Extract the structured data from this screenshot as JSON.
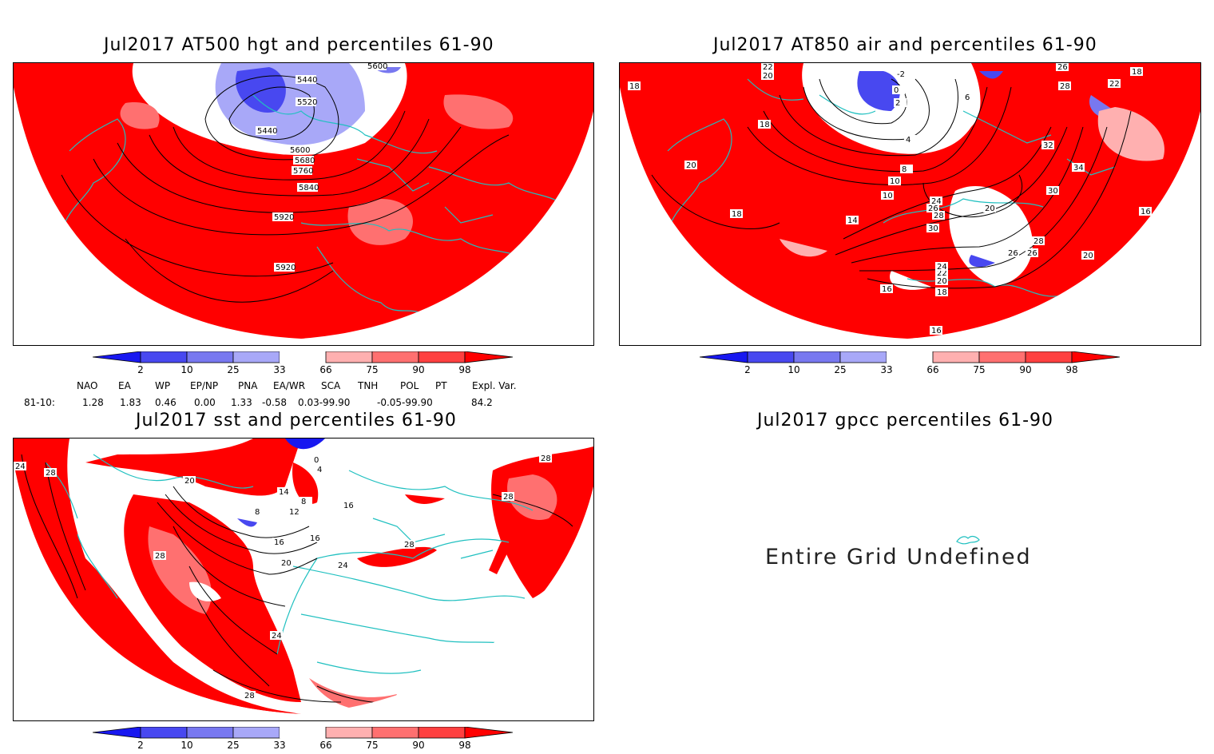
{
  "panels": [
    {
      "title": "Jul2017 AT500 hgt and percentiles 61-90",
      "contour_labels": [
        "5440",
        "5440",
        "5520",
        "5600",
        "5600",
        "5680",
        "5760",
        "5840",
        "5920",
        "5920"
      ]
    },
    {
      "title": "Jul2017 AT850 air and percentiles 61-90",
      "contour_labels": [
        "22",
        "20",
        "18",
        "18",
        "20",
        "18",
        "-2",
        "0",
        "2",
        "4",
        "6",
        "8",
        "10",
        "10",
        "12",
        "14",
        "16",
        "18",
        "20",
        "22",
        "24",
        "26",
        "28",
        "30",
        "32",
        "34",
        "30",
        "28",
        "26",
        "26",
        "28",
        "18",
        "16",
        "16",
        "20",
        "20",
        "22",
        "24",
        "26"
      ]
    },
    {
      "title": "Jul2017 sst and percentiles 61-90",
      "contour_labels": [
        "24",
        "28",
        "20",
        "28",
        "24",
        "28",
        "8",
        "12",
        "16",
        "16",
        "20",
        "14",
        "8",
        "4",
        "0",
        "16",
        "24",
        "28",
        "28",
        "28"
      ]
    },
    {
      "title": "Jul2017 gpcc percentiles 61-90",
      "message": "Entire Grid Undefined"
    }
  ],
  "colorbar": {
    "ticks": [
      "2",
      "10",
      "25",
      "33",
      "66",
      "75",
      "90",
      "98"
    ],
    "colors": [
      "#1818f0",
      "#4848f0",
      "#7878f0",
      "#a8a8f8",
      "#ffffff",
      "#ffb0b0",
      "#ff7070",
      "#ff4040",
      "#ff0000"
    ]
  },
  "indices": {
    "headers": [
      "NAO",
      "EA",
      "WP",
      "EP/NP",
      "PNA",
      "EA/WR",
      "SCA",
      "TNH",
      "POL",
      "PT",
      "Expl. Var."
    ],
    "row_label": "81-10:",
    "values": [
      "1.28",
      "1.83",
      "0.46",
      "0.00",
      "1.33",
      "-0.58",
      "0.03-99.90",
      "-0.05-99.90",
      "84.2"
    ]
  },
  "colors": {
    "coastline": "#20c0c0",
    "contour": "#000000",
    "hot": "#ff0000",
    "cold": "#1818f0"
  }
}
